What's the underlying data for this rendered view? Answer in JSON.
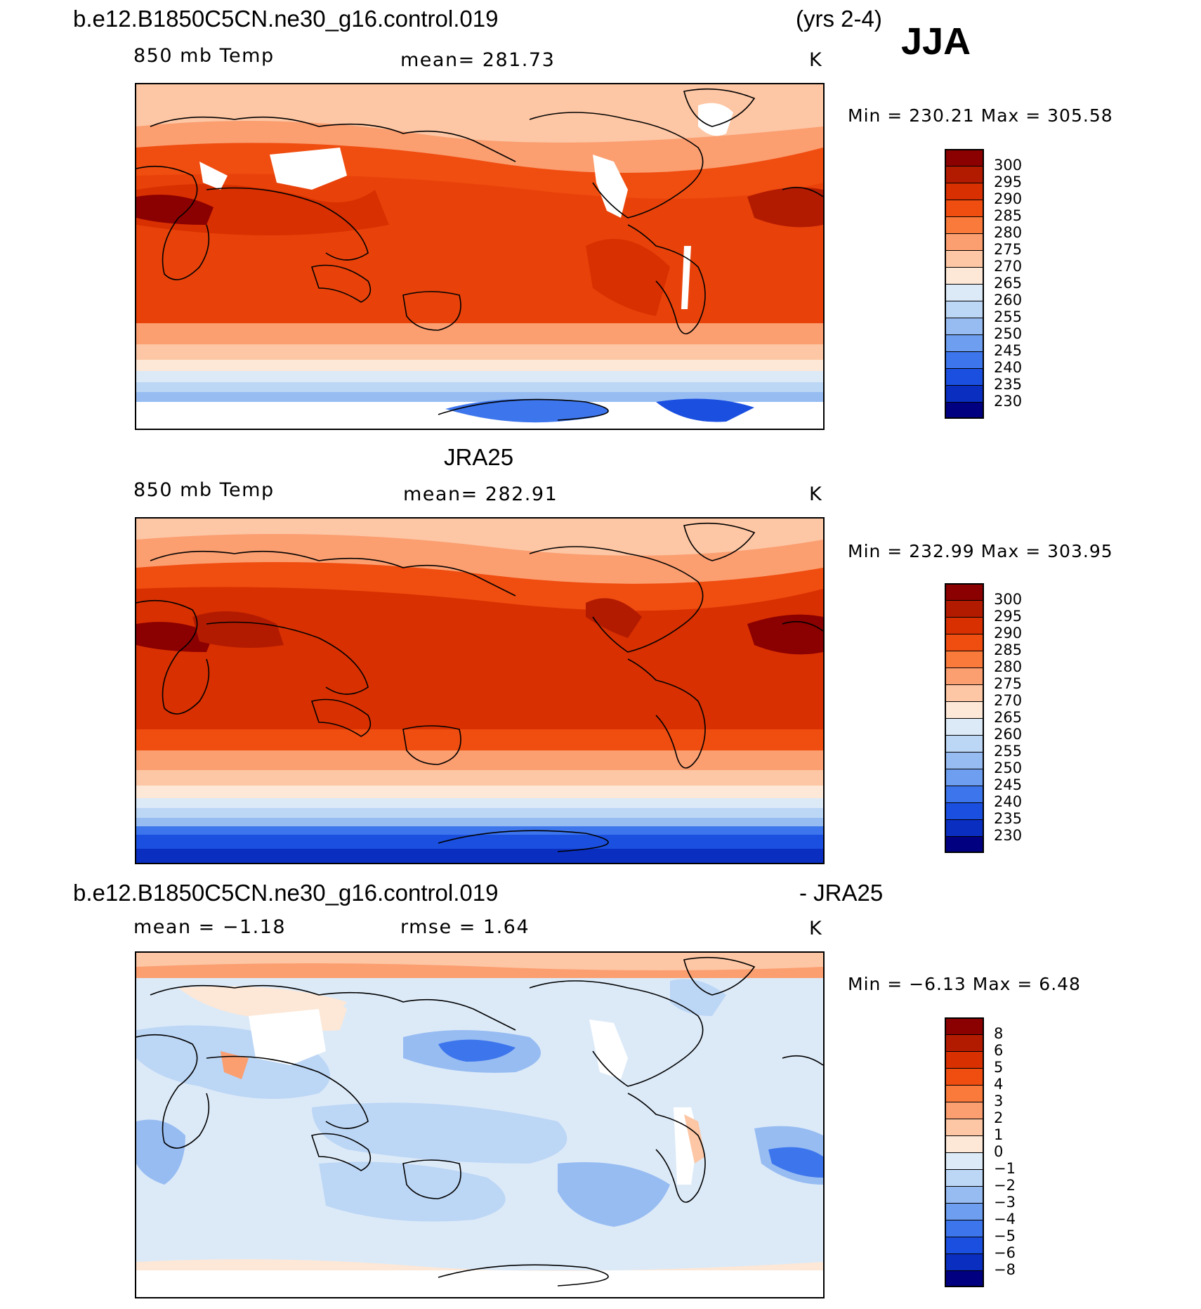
{
  "header": {
    "case_name": "b.e12.B1850C5CN.ne30_g16.control.019",
    "years": "(yrs 2-4)",
    "season": "JJA"
  },
  "panels": [
    {
      "id": "model",
      "title": "",
      "variable": "850 mb Temp",
      "stat": "mean=  281.73",
      "units": "K",
      "minmax": "Min  =  230.21  Max  =  305.58",
      "palette": "absolute"
    },
    {
      "id": "obs",
      "title": "JRA25",
      "variable": "850 mb Temp",
      "stat": "mean=  282.91",
      "units": "K",
      "minmax": "Min  =  232.99  Max  =  303.95",
      "palette": "absolute"
    },
    {
      "id": "diff",
      "title_left": "b.e12.B1850C5CN.ne30_g16.control.019",
      "title_right": "- JRA25",
      "variable": "mean =   −1.18",
      "stat": "rmse =    1.64",
      "units": "K",
      "minmax": "Min  =   −6.13  Max  =    6.48",
      "palette": "difference"
    }
  ],
  "colorbars": {
    "absolute": {
      "labels": [
        "300",
        "295",
        "290",
        "285",
        "280",
        "275",
        "270",
        "265",
        "260",
        "255",
        "250",
        "245",
        "240",
        "235",
        "230"
      ],
      "colors": [
        "#8b0000",
        "#b31b00",
        "#d83000",
        "#f04d10",
        "#fa7a3c",
        "#fb9e70",
        "#fdc6a4",
        "#fde7d6",
        "#dceaf8",
        "#bcd6f5",
        "#97bcf2",
        "#6e9eef",
        "#3d75ec",
        "#1a4fe0",
        "#0a2ec0",
        "#000080"
      ]
    },
    "difference": {
      "labels": [
        "8",
        "6",
        "5",
        "4",
        "3",
        "2",
        "1",
        "0",
        "−1",
        "−2",
        "−3",
        "−4",
        "−5",
        "−6",
        "−8"
      ],
      "colors": [
        "#8b0000",
        "#b31b00",
        "#d83000",
        "#f04d10",
        "#fa7a3c",
        "#fb9e70",
        "#fdc6a4",
        "#fde7d6",
        "#dceaf8",
        "#bcd6f5",
        "#97bcf2",
        "#6e9eef",
        "#3d75ec",
        "#1a4fe0",
        "#0a2ec0",
        "#000080"
      ]
    }
  }
}
